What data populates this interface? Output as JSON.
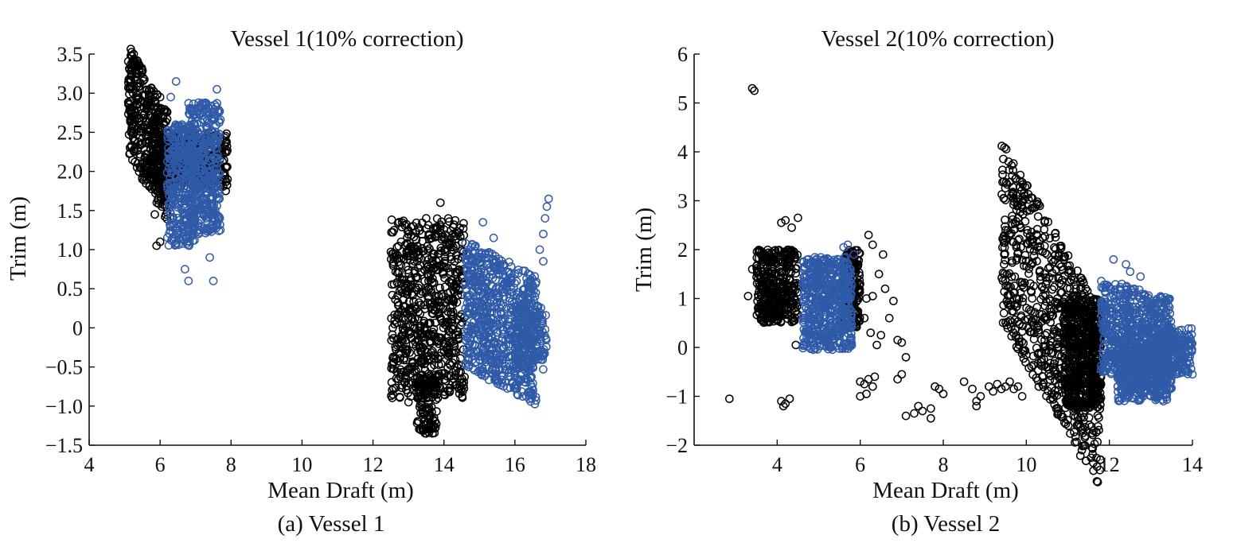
{
  "figure": {
    "captions": [
      "(a) Vessel 1",
      "(b) Vessel 2"
    ]
  },
  "colors": {
    "raw": "#000000",
    "corrected": "#2f5aa8",
    "axis": "#111111"
  },
  "chart_data": [
    {
      "type": "scatter",
      "title": "Vessel 1(10% correction)",
      "xlabel": "Mean Draft (m)",
      "ylabel": "Trim (m)",
      "xlim": [
        4,
        18
      ],
      "ylim": [
        -1.5,
        3.5
      ],
      "xticks": [
        4,
        6,
        8,
        10,
        12,
        14,
        16,
        18
      ],
      "xtick_labels": [
        "4",
        "6",
        "8",
        "10",
        "12",
        "14",
        "16",
        "18"
      ],
      "yticks": [
        -1.5,
        -1.0,
        -0.5,
        0,
        0.5,
        1.0,
        1.5,
        2.0,
        2.5,
        3.0,
        3.5
      ],
      "ytick_labels": [
        "−1.5",
        "−1.0",
        "−0.5",
        "0",
        "0.5",
        "1.0",
        "1.5",
        "2.0",
        "2.5",
        "3.0",
        "3.5"
      ],
      "caption": "(a) Vessel 1",
      "series": [
        {
          "name": "raw",
          "color": "#000000",
          "clusters": [
            {
              "x": [
                5.1,
                6.2
              ],
              "y": [
                1.8,
                3.2
              ],
              "slope": -0.8
            },
            {
              "x": [
                5.8,
                7.9
              ],
              "y": [
                1.8,
                2.5
              ],
              "slope": 0
            },
            {
              "x": [
                12.5,
                14.6
              ],
              "y": [
                -0.9,
                1.4
              ],
              "slope": 0
            },
            {
              "x": [
                13.2,
                13.8
              ],
              "y": [
                -1.35,
                -0.6
              ],
              "slope": 0
            }
          ],
          "points": [
            [
              5.3,
              3.35
            ],
            [
              5.4,
              3.3
            ],
            [
              5.15,
              2.9
            ],
            [
              5.2,
              2.55
            ],
            [
              5.35,
              2.05
            ],
            [
              5.5,
              1.9
            ],
            [
              5.9,
              1.05
            ],
            [
              6.0,
              1.1
            ],
            [
              5.85,
              1.45
            ],
            [
              6.05,
              1.55
            ],
            [
              6.0,
              2.95
            ],
            [
              7.85,
              1.75
            ],
            [
              7.9,
              1.9
            ],
            [
              12.7,
              0.7
            ],
            [
              12.8,
              0.5
            ],
            [
              12.9,
              0.1
            ],
            [
              13.0,
              -0.95
            ],
            [
              13.4,
              -1.3
            ],
            [
              13.5,
              -1.35
            ],
            [
              13.6,
              -1.15
            ],
            [
              13.9,
              1.6
            ],
            [
              13.5,
              1.4
            ],
            [
              14.0,
              -0.85
            ]
          ]
        },
        {
          "name": "corrected",
          "color": "#2f5aa8",
          "clusters": [
            {
              "x": [
                6.2,
                7.0
              ],
              "y": [
                1.05,
                2.6
              ],
              "slope": 0
            },
            {
              "x": [
                6.8,
                7.7
              ],
              "y": [
                1.2,
                2.9
              ],
              "slope": 0
            },
            {
              "x": [
                14.6,
                16.6
              ],
              "y": [
                -0.75,
                0.9
              ],
              "slope": -0.25
            },
            {
              "x": [
                16.0,
                16.9
              ],
              "y": [
                -0.55,
                0.3
              ],
              "slope": 0
            }
          ],
          "points": [
            [
              6.45,
              3.15
            ],
            [
              7.6,
              3.05
            ],
            [
              6.7,
              0.75
            ],
            [
              6.8,
              0.6
            ],
            [
              7.5,
              0.6
            ],
            [
              7.4,
              0.9
            ],
            [
              7.7,
              1.25
            ],
            [
              6.3,
              2.95
            ],
            [
              16.7,
              1.0
            ],
            [
              16.8,
              1.2
            ],
            [
              16.85,
              1.4
            ],
            [
              16.95,
              1.65
            ],
            [
              16.9,
              1.55
            ],
            [
              16.8,
              0.85
            ],
            [
              15.4,
              1.15
            ],
            [
              15.1,
              1.35
            ],
            [
              15.7,
              0.8
            ],
            [
              16.1,
              0.7
            ]
          ]
        }
      ]
    },
    {
      "type": "scatter",
      "title": "Vessel 2(10% correction)",
      "xlabel": "Mean Draft (m)",
      "ylabel": "Trim (m)",
      "xlim": [
        2,
        14
      ],
      "ylim": [
        -2,
        6
      ],
      "xticks": [
        4,
        6,
        8,
        10,
        12,
        14
      ],
      "xtick_labels": [
        "4",
        "6",
        "8",
        "10",
        "12",
        "14"
      ],
      "yticks": [
        -2,
        -1,
        0,
        1,
        2,
        3,
        4,
        5,
        6
      ],
      "ytick_labels": [
        "−2",
        "−1",
        "0",
        "1",
        "2",
        "3",
        "4",
        "5",
        "6"
      ],
      "caption": "(b) Vessel 2",
      "series": [
        {
          "name": "raw",
          "color": "#000000",
          "clusters": [
            {
              "x": [
                3.5,
                4.5
              ],
              "y": [
                0.5,
                2.0
              ],
              "slope": 0
            },
            {
              "x": [
                5.6,
                6.0
              ],
              "y": [
                0.4,
                2.0
              ],
              "slope": 0
            },
            {
              "x": [
                9.4,
                11.8
              ],
              "y": [
                -1.2,
                2.5
              ],
              "slope": -1.45
            },
            {
              "x": [
                10.9,
                11.8
              ],
              "y": [
                -1.25,
                1.0
              ],
              "slope": 0
            }
          ],
          "points": [
            [
              3.4,
              5.3
            ],
            [
              3.45,
              5.25
            ],
            [
              2.85,
              -1.05
            ],
            [
              4.1,
              2.55
            ],
            [
              4.2,
              2.6
            ],
            [
              4.5,
              2.65
            ],
            [
              4.35,
              2.45
            ],
            [
              3.3,
              1.05
            ],
            [
              3.4,
              1.6
            ],
            [
              4.45,
              0.05
            ],
            [
              4.1,
              -1.1
            ],
            [
              4.2,
              -1.15
            ],
            [
              4.3,
              -1.05
            ],
            [
              4.15,
              -1.2
            ],
            [
              6.15,
              1.0
            ],
            [
              6.3,
              1.05
            ],
            [
              6.1,
              0.6
            ],
            [
              6.25,
              0.3
            ],
            [
              6.4,
              0.05
            ],
            [
              6.5,
              0.25
            ],
            [
              6.6,
              1.2
            ],
            [
              6.7,
              0.6
            ],
            [
              6.8,
              0.95
            ],
            [
              6.9,
              0.15
            ],
            [
              7.0,
              0.1
            ],
            [
              7.1,
              -0.2
            ],
            [
              6.2,
              2.3
            ],
            [
              6.3,
              2.1
            ],
            [
              6.45,
              1.5
            ],
            [
              6.55,
              1.9
            ],
            [
              6.0,
              -0.7
            ],
            [
              6.1,
              -0.75
            ],
            [
              6.2,
              -0.65
            ],
            [
              6.3,
              -0.8
            ],
            [
              6.15,
              -0.95
            ],
            [
              6.35,
              -0.6
            ],
            [
              6.9,
              -0.65
            ],
            [
              7.0,
              -0.55
            ],
            [
              6.0,
              -1.0
            ],
            [
              7.1,
              -1.4
            ],
            [
              7.3,
              -1.35
            ],
            [
              7.4,
              -1.2
            ],
            [
              7.5,
              -1.3
            ],
            [
              7.7,
              -1.25
            ],
            [
              7.8,
              -0.8
            ],
            [
              7.9,
              -0.85
            ],
            [
              8.0,
              -0.95
            ],
            [
              7.7,
              -1.45
            ],
            [
              8.5,
              -0.7
            ],
            [
              8.7,
              -0.85
            ],
            [
              8.8,
              -1.1
            ],
            [
              8.9,
              -1.0
            ],
            [
              8.8,
              -1.2
            ],
            [
              9.1,
              -0.8
            ],
            [
              9.2,
              -0.9
            ],
            [
              9.3,
              -0.75
            ],
            [
              9.4,
              -0.85
            ],
            [
              9.5,
              -0.8
            ],
            [
              9.6,
              -0.7
            ],
            [
              9.7,
              -0.85
            ],
            [
              9.8,
              -0.8
            ],
            [
              9.9,
              -1.0
            ],
            [
              10.3,
              -0.8
            ],
            [
              10.0,
              -0.15
            ],
            [
              10.5,
              1.9
            ],
            [
              11.1,
              1.45
            ],
            [
              11.3,
              1.2
            ],
            [
              11.5,
              0.8
            ]
          ]
        },
        {
          "name": "corrected",
          "color": "#2f5aa8",
          "clusters": [
            {
              "x": [
                4.6,
                5.8
              ],
              "y": [
                -0.05,
                1.85
              ],
              "slope": 0
            },
            {
              "x": [
                11.8,
                13.5
              ],
              "y": [
                -0.7,
                1.2
              ],
              "slope": -0.25
            },
            {
              "x": [
                12.2,
                13.4
              ],
              "y": [
                -1.1,
                0.1
              ],
              "slope": 0
            },
            {
              "x": [
                13.2,
                14.0
              ],
              "y": [
                -0.55,
                0.4
              ],
              "slope": 0
            }
          ],
          "points": [
            [
              5.7,
              2.1
            ],
            [
              5.6,
              2.05
            ],
            [
              5.85,
              1.9
            ],
            [
              12.1,
              1.8
            ],
            [
              12.4,
              1.7
            ],
            [
              12.5,
              1.55
            ],
            [
              12.75,
              1.45
            ],
            [
              12.3,
              1.3
            ],
            [
              12.35,
              0.8
            ],
            [
              13.35,
              0.95
            ],
            [
              13.3,
              -1.1
            ],
            [
              13.35,
              -0.95
            ],
            [
              12.2,
              -0.8
            ],
            [
              14.0,
              -0.55
            ],
            [
              13.9,
              -0.5
            ]
          ]
        }
      ]
    }
  ]
}
